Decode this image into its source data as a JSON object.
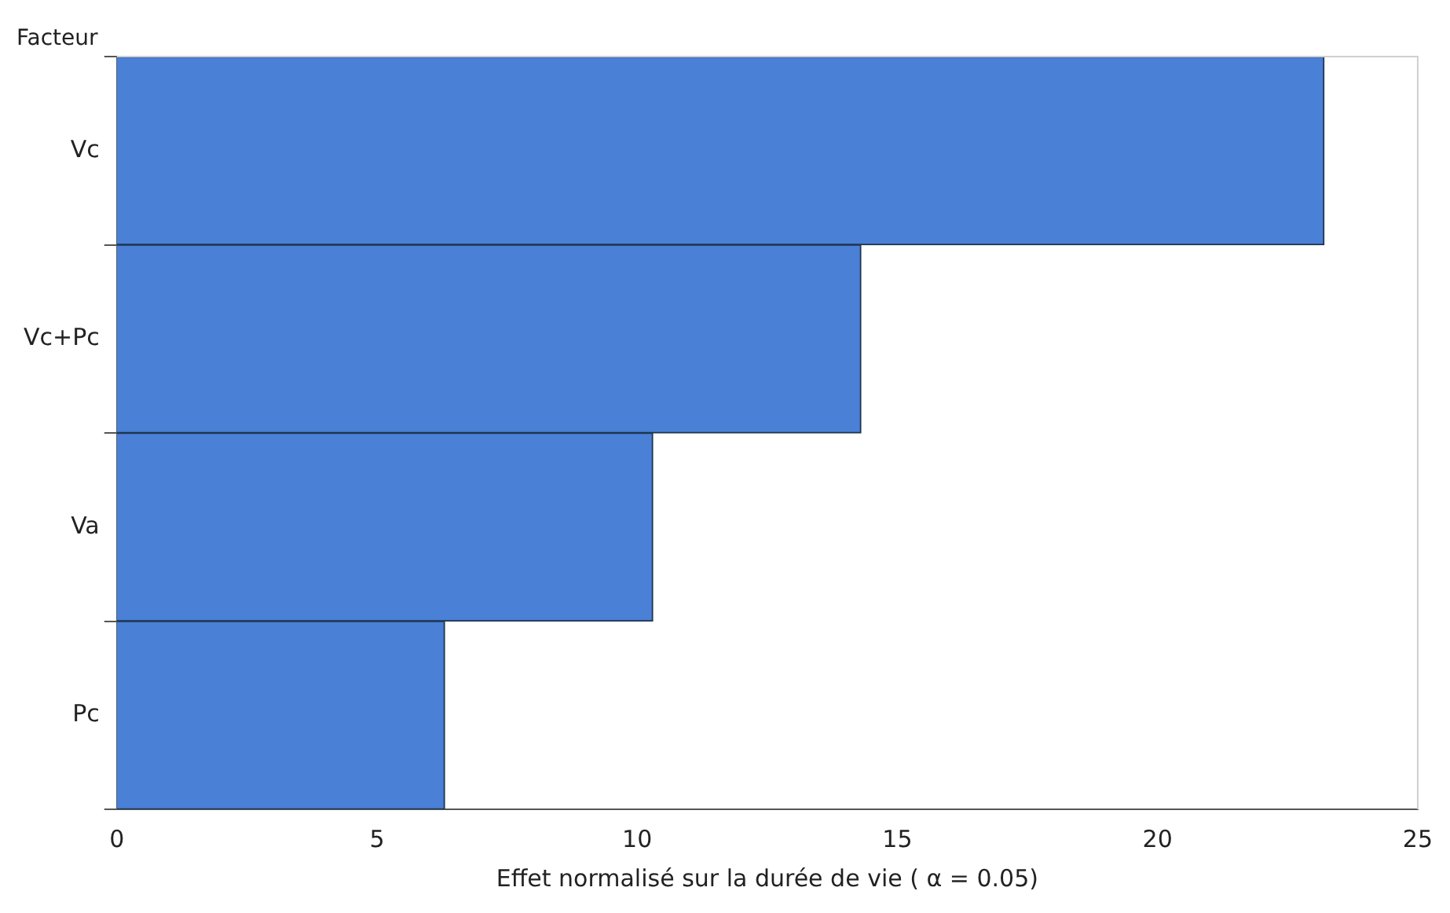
{
  "chart_data": {
    "type": "bar",
    "orientation": "horizontal",
    "ylabel": "Facteur",
    "xlabel": "Effet normalisé sur la durée de vie ( α = 0.05)",
    "categories": [
      "Vc",
      "Vc+Pc",
      "Va",
      "Pc"
    ],
    "values": [
      23.2,
      14.3,
      10.3,
      6.3
    ],
    "color": "#4a80d6",
    "xlim": [
      0,
      25
    ],
    "xticks": [
      0,
      5,
      10,
      15,
      20,
      25
    ],
    "grid": false,
    "legend": false
  }
}
